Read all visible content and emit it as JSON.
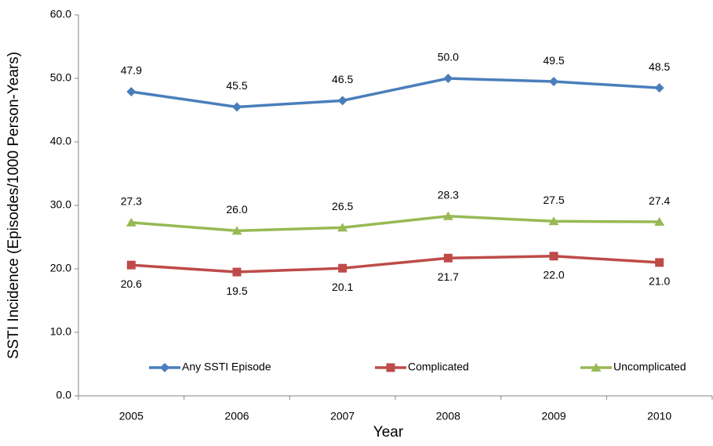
{
  "chart_data": {
    "type": "line",
    "x_label": "Year",
    "y_label": "SSTI Incidence (Episodes/1000 Person-Years)",
    "categories": [
      "2005",
      "2006",
      "2007",
      "2008",
      "2009",
      "2010"
    ],
    "series": [
      {
        "name": "Any SSTI Episode",
        "color": "#4a7ebb",
        "marker": "diamond",
        "label_position": "above",
        "values": [
          47.9,
          45.5,
          46.5,
          50.0,
          49.5,
          48.5
        ],
        "value_labels": [
          "47.9",
          "45.5",
          "46.5",
          "50.0",
          "49.5",
          "48.5"
        ]
      },
      {
        "name": "Complicated",
        "color": "#be4b48",
        "marker": "square",
        "label_position": "below",
        "values": [
          20.6,
          19.5,
          20.1,
          21.7,
          22.0,
          21.0
        ],
        "value_labels": [
          "20.6",
          "19.5",
          "20.1",
          "21.7",
          "22.0",
          "21.0"
        ]
      },
      {
        "name": "Uncomplicated",
        "color": "#98b954",
        "marker": "triangle",
        "label_position": "above",
        "values": [
          27.3,
          26.0,
          26.5,
          28.3,
          27.5,
          27.4
        ],
        "value_labels": [
          "27.3",
          "26.0",
          "26.5",
          "28.3",
          "27.5",
          "27.4"
        ]
      }
    ],
    "ylim": [
      0,
      60
    ],
    "yticks": [
      {
        "value": 0,
        "label": "0.0"
      },
      {
        "value": 10,
        "label": "10.0"
      },
      {
        "value": 20,
        "label": "20.0"
      },
      {
        "value": 30,
        "label": "30.0"
      },
      {
        "value": 40,
        "label": "40.0"
      },
      {
        "value": 50,
        "label": "50.0"
      },
      {
        "value": 60,
        "label": "60.0"
      }
    ],
    "grid": false,
    "legend_position": "bottom"
  }
}
